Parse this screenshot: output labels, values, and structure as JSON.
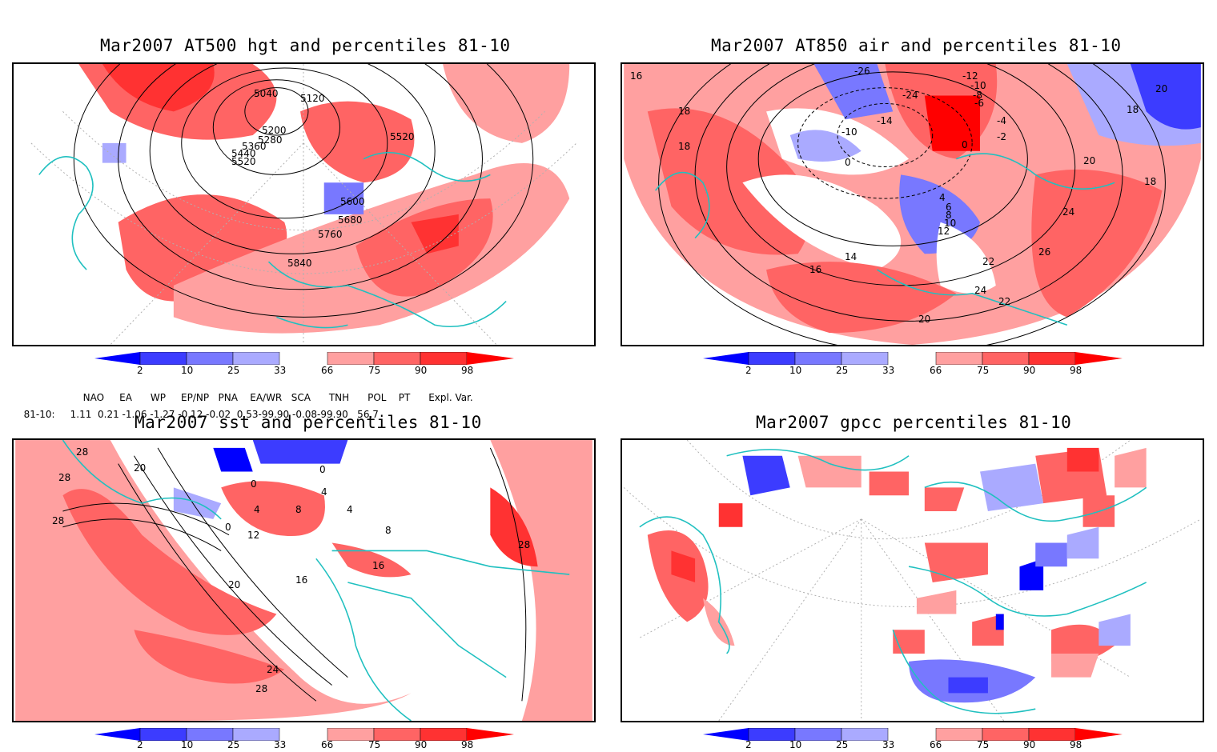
{
  "panels": [
    {
      "id": "hgt",
      "title": "Mar2007 AT500 hgt and percentiles 81-10",
      "contour_labels": [
        "5040",
        "5120",
        "5200",
        "5280",
        "5360",
        "5440",
        "5520",
        "5520",
        "5600",
        "5680",
        "5760",
        "5840"
      ]
    },
    {
      "id": "air",
      "title": "Mar2007 AT850 air and percentiles 81-10",
      "contour_labels": [
        "16",
        "18",
        "18",
        "-26",
        "-24",
        "-12",
        "-10",
        "-8",
        "-6",
        "-4",
        "-2",
        "0",
        "0",
        "-10",
        "-14",
        "4",
        "6",
        "8",
        "10",
        "12",
        "14",
        "16",
        "20",
        "20",
        "18",
        "18",
        "22",
        "24",
        "26",
        "24",
        "22",
        "20"
      ]
    },
    {
      "id": "sst",
      "title": "Mar2007 sst and percentiles 81-10",
      "contour_labels": [
        "28",
        "28",
        "28",
        "20",
        "0",
        "0",
        "4",
        "8",
        "4",
        "4",
        "0",
        "12",
        "16",
        "20",
        "16",
        "24",
        "28",
        "8",
        "28"
      ]
    },
    {
      "id": "gpcc",
      "title": "Mar2007 gpcc percentiles 81-10",
      "contour_labels": []
    }
  ],
  "colorbar": {
    "ticks": [
      "2",
      "10",
      "25",
      "33",
      "66",
      "75",
      "90",
      "98"
    ],
    "colors": {
      "blue_extreme": "#0000ff",
      "blue_strong": "#3c3cff",
      "blue_mid": "#7878ff",
      "blue_light": "#aaaaff",
      "neutral": "#ffffff",
      "red_light": "#ffa0a0",
      "red_mid": "#ff6464",
      "red_strong": "#ff3232",
      "red_extreme": "#ff0000"
    }
  },
  "indices": {
    "headers": [
      "NAO",
      "EA",
      "WP",
      "EP/NP",
      "PNA",
      "EA/WR",
      "SCA",
      "TNH",
      "POL",
      "PT",
      "Expl. Var."
    ],
    "row_label": "81-10:",
    "values_text": "1.11  0.21 -1.06 -1.27 -0.12 -0.02  0.53-99.90 -0.08-99.90   56.7"
  },
  "map_colors": {
    "coast": "#20c0c0",
    "contour": "#000000",
    "graticule": "#b0b0b0"
  }
}
